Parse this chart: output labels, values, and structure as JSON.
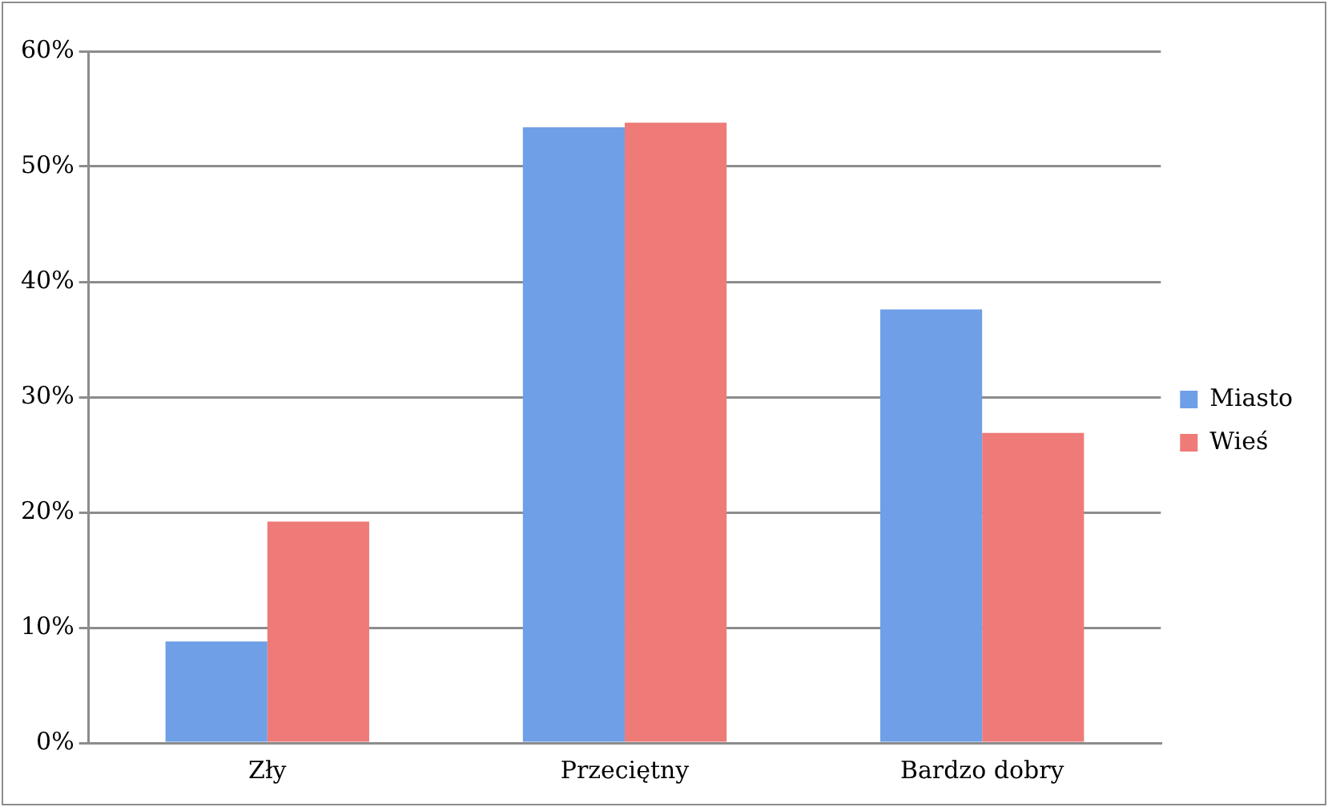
{
  "chart_data": {
    "type": "bar",
    "categories": [
      "Zły",
      "Przeciętny",
      "Bardzo dobry"
    ],
    "series": [
      {
        "name": "Miasto",
        "color": "#6f9fe6",
        "values": [
          8.8,
          53.4,
          37.6
        ]
      },
      {
        "name": "Wieś",
        "color": "#ee7b78",
        "values": [
          19.2,
          53.8,
          26.9
        ]
      }
    ],
    "ylim": [
      0,
      60
    ],
    "yticks": [
      {
        "value": 0,
        "label": "0%"
      },
      {
        "value": 10,
        "label": "10%"
      },
      {
        "value": 20,
        "label": "20%"
      },
      {
        "value": 30,
        "label": "30%"
      },
      {
        "value": 40,
        "label": "40%"
      },
      {
        "value": 50,
        "label": "50%"
      },
      {
        "value": 60,
        "label": "60%"
      }
    ],
    "grid": "y",
    "legend": "right"
  }
}
